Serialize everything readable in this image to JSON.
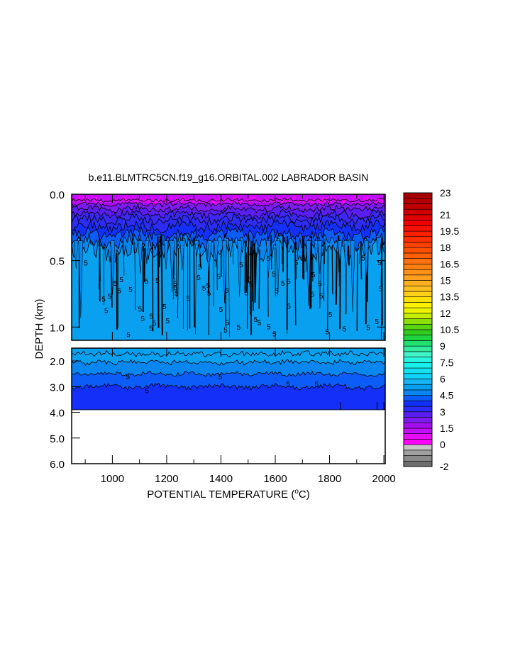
{
  "chart_data": {
    "type": "heatmap",
    "title": "b.e11.BLMTRC5CN.f19_g16.ORBITAL.002 LABRADOR BASIN",
    "xlabel": "POTENTIAL TEMPERATURE (",
    "xlabel_unit_sup": "o",
    "xlabel_unit": "C)",
    "ylabel": "DEPTH (km)",
    "xlim": [
      850,
      2005
    ],
    "x_ticks": [
      1000,
      1200,
      1400,
      1600,
      1800,
      2000
    ],
    "x_tick_labels": [
      "1000",
      "1200",
      "1400",
      "1600",
      "1800",
      "2000"
    ],
    "upper_panel": {
      "ylim": [
        0.0,
        1.1
      ],
      "y_ticks": [
        0.0,
        0.5,
        1.0
      ],
      "y_tick_labels": [
        "0.0",
        "0.5",
        "1.0"
      ]
    },
    "lower_panel": {
      "ylim": [
        1.5,
        6.0
      ],
      "y_ticks": [
        2.0,
        3.0,
        4.0,
        5.0,
        6.0
      ],
      "y_tick_labels": [
        "2.0",
        "3.0",
        "4.0",
        "5.0",
        "6.0"
      ],
      "data_bottom_depth": 3.9
    },
    "contour_label": "5",
    "colorbar": {
      "min": -2,
      "max": 23,
      "step": 0.5,
      "labels": [
        "23",
        "21",
        "19.5",
        "18",
        "16.5",
        "15",
        "13.5",
        "12",
        "10.5",
        "9",
        "7.5",
        "6",
        "4.5",
        "3",
        "1.5",
        "0",
        "-2"
      ],
      "label_values": [
        23,
        21,
        19.5,
        18,
        16.5,
        15,
        13.5,
        12,
        10.5,
        9,
        7.5,
        6,
        4.5,
        3,
        1.5,
        0,
        -2
      ]
    },
    "field_colors": {
      "band_0_05": "#c30ff7",
      "band_05_1": "#a40ff0",
      "band_1_15": "#7d1cf0",
      "band_15_2": "#5a1ef0",
      "band_2_25": "#3c28f0",
      "band_25_3": "#2c2cf4",
      "band_3_35": "#1430f8",
      "band_35_4": "#0c5cf8",
      "band_4_45": "#0a86f0",
      "band_45_5": "#0aa0f0"
    }
  }
}
